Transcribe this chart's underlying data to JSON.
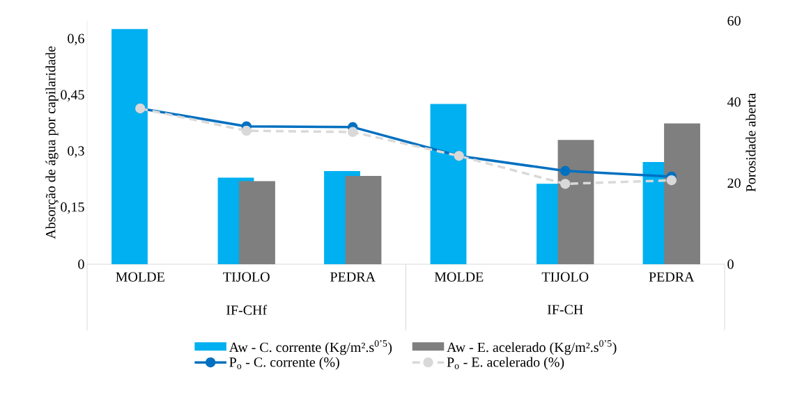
{
  "chart_data": {
    "type": "bar",
    "ylabel": "Absorção de água por capilaridade",
    "y2label": "Porosidade aberta",
    "categories": [
      "MOLDE",
      "TIJOLO",
      "PEDRA",
      "MOLDE",
      "TIJOLO",
      "PEDRA"
    ],
    "annotations": [
      "IF-CHf",
      "IF-CH"
    ],
    "series": [
      {
        "name": "Aw - C. corrente (Kg/m².s$^{0’5}$)",
        "color": "#00b0f0",
        "values": [
          0.628,
          0.231,
          0.249,
          0.428,
          0.215,
          0.273
        ]
      },
      {
        "name": "Aw - E. acelerado (Kg/m².s$^{0’5}$)",
        "color": "#7f7f7f",
        "values": [
          null,
          0.222,
          0.236,
          null,
          0.332,
          0.376
        ]
      },
      {
        "name": "P$_{o}$ - C. corrente (%)",
        "type": "line",
        "axis": "y2",
        "line_style": "solid",
        "color": "#0070c0",
        "values": [
          38.4,
          34.0,
          33.8,
          26.7,
          23.0,
          21.6
        ]
      },
      {
        "name": "P$_{o}$ - E. acelerado (%)",
        "type": "line",
        "axis": "y2",
        "line_style": "dashed",
        "color": "#d9d9d9",
        "values": [
          38.4,
          32.9,
          32.6,
          26.7,
          19.8,
          20.7
        ]
      }
    ],
    "ylim": [
      0,
      0.65
    ],
    "yticks": [
      0,
      {
        "value": 0.15,
        "label": "0,15"
      },
      {
        "value": 0.3,
        "label": "0,3"
      },
      {
        "value": 0.45,
        "label": "0,45"
      },
      {
        "value": 0.6,
        "label": "0,6"
      }
    ],
    "y2lim": [
      0,
      60
    ],
    "y2ticks": [
      0,
      20,
      40,
      60
    ],
    "legend": "bottom",
    "marker": "circle"
  }
}
